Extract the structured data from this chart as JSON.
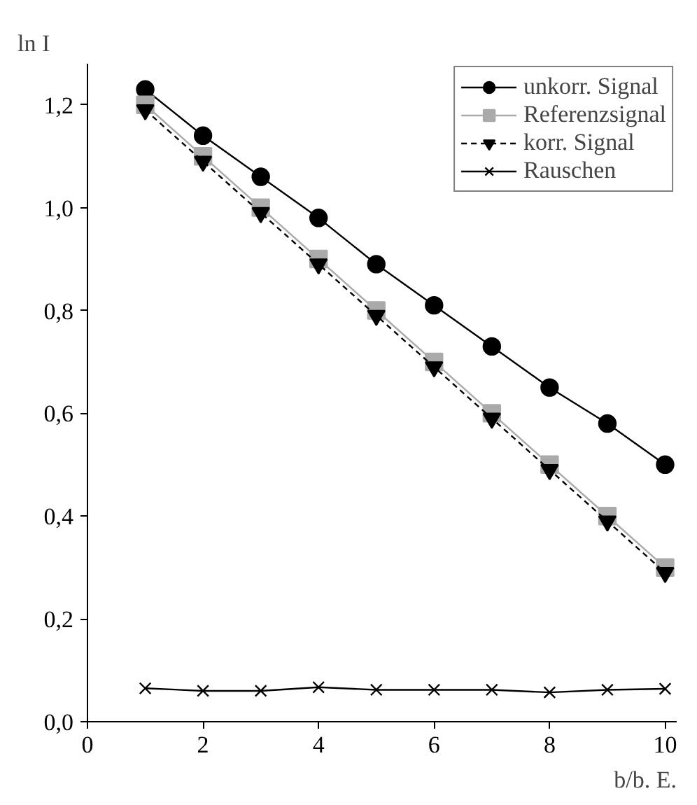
{
  "chart_data": {
    "type": "line",
    "ylabel": "ln I",
    "xlabel": "b/b. E.",
    "x": [
      1,
      2,
      3,
      4,
      5,
      6,
      7,
      8,
      9,
      10
    ],
    "series": [
      {
        "name": "unkorr. Signal",
        "color": "#000000",
        "marker": "circle",
        "line_style": "solid",
        "values": [
          1.23,
          1.14,
          1.06,
          0.98,
          0.89,
          0.81,
          0.73,
          0.65,
          0.58,
          0.5
        ]
      },
      {
        "name": "Referenzsignal",
        "color": "#aaaaaa",
        "marker": "square",
        "line_style": "solid",
        "values": [
          1.2,
          1.1,
          1.0,
          0.9,
          0.8,
          0.7,
          0.6,
          0.5,
          0.4,
          0.3
        ]
      },
      {
        "name": "korr. Signal",
        "color": "#000000",
        "marker": "triangle",
        "line_style": "dashed",
        "values": [
          1.19,
          1.09,
          0.99,
          0.89,
          0.79,
          0.69,
          0.59,
          0.49,
          0.39,
          0.29
        ]
      },
      {
        "name": "Rauschen",
        "color": "#000000",
        "marker": "cross",
        "line_style": "solid",
        "values": [
          0.065,
          0.06,
          0.06,
          0.067,
          0.062,
          0.062,
          0.062,
          0.057,
          0.062,
          0.064
        ]
      }
    ],
    "xlim": [
      0,
      10.2
    ],
    "ylim": [
      0,
      1.28
    ],
    "xticks": [
      0,
      2,
      4,
      6,
      8,
      10
    ],
    "yticks": [
      {
        "value": 0,
        "label": "0,0"
      },
      {
        "value": 0.2,
        "label": "0,2"
      },
      {
        "value": 0.4,
        "label": "0,4"
      },
      {
        "value": 0.6,
        "label": "0,6"
      },
      {
        "value": 0.8,
        "label": "0,8"
      },
      {
        "value": 1.0,
        "label": "1,0"
      },
      {
        "value": 1.2,
        "label": "1,2"
      }
    ],
    "grid": false,
    "legend": "top right"
  }
}
